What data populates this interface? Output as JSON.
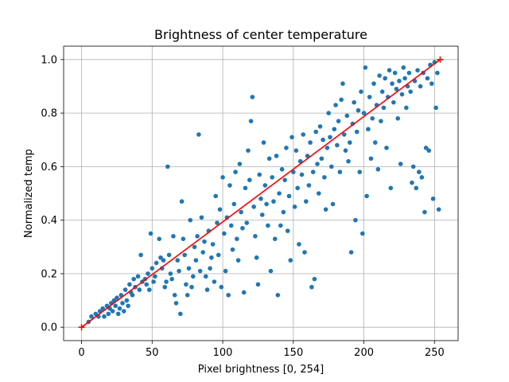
{
  "chart_data": {
    "type": "scatter",
    "title": "Brightness of center temperature",
    "xlabel": "Pixel brightness [0, 254]",
    "ylabel": "Normalized temp",
    "xlim": [
      -12.7,
      266.7
    ],
    "ylim": [
      -0.05,
      1.05
    ],
    "xticks": [
      0,
      50,
      100,
      150,
      200,
      250
    ],
    "yticks": [
      0.0,
      0.2,
      0.4,
      0.6,
      0.8,
      1.0
    ],
    "xtick_labels": [
      "0",
      "50",
      "100",
      "150",
      "200",
      "250"
    ],
    "ytick_labels": [
      "0.0",
      "0.2",
      "0.4",
      "0.6",
      "0.8",
      "1.0"
    ],
    "grid": true,
    "series": [
      {
        "kind": "scatter",
        "color": "#1f77b4",
        "points": [
          [
            5,
            0.02
          ],
          [
            7,
            0.04
          ],
          [
            10,
            0.05
          ],
          [
            12,
            0.04
          ],
          [
            13,
            0.06
          ],
          [
            15,
            0.07
          ],
          [
            16,
            0.04
          ],
          [
            18,
            0.08
          ],
          [
            19,
            0.05
          ],
          [
            20,
            0.07
          ],
          [
            21,
            0.09
          ],
          [
            22,
            0.06
          ],
          [
            23,
            0.1
          ],
          [
            24,
            0.08
          ],
          [
            25,
            0.11
          ],
          [
            26,
            0.05
          ],
          [
            27,
            0.07
          ],
          [
            28,
            0.12
          ],
          [
            29,
            0.09
          ],
          [
            30,
            0.06
          ],
          [
            31,
            0.14
          ],
          [
            32,
            0.1
          ],
          [
            33,
            0.08
          ],
          [
            34,
            0.16
          ],
          [
            35,
            0.13
          ],
          [
            36,
            0.12
          ],
          [
            37,
            0.18
          ],
          [
            38,
            0.15
          ],
          [
            40,
            0.19
          ],
          [
            41,
            0.14
          ],
          [
            42,
            0.27
          ],
          [
            43,
            0.17
          ],
          [
            45,
            0.18
          ],
          [
            46,
            0.16
          ],
          [
            47,
            0.2
          ],
          [
            48,
            0.14
          ],
          [
            49,
            0.35
          ],
          [
            50,
            0.22
          ],
          [
            51,
            0.17
          ],
          [
            52,
            0.19
          ],
          [
            53,
            0.24
          ],
          [
            55,
            0.33
          ],
          [
            56,
            0.26
          ],
          [
            57,
            0.22
          ],
          [
            58,
            0.25
          ],
          [
            59,
            0.15
          ],
          [
            60,
            0.17
          ],
          [
            61,
            0.6
          ],
          [
            62,
            0.27
          ],
          [
            63,
            0.2
          ],
          [
            64,
            0.18
          ],
          [
            65,
            0.34
          ],
          [
            66,
            0.12
          ],
          [
            67,
            0.09
          ],
          [
            68,
            0.25
          ],
          [
            69,
            0.21
          ],
          [
            70,
            0.05
          ],
          [
            71,
            0.47
          ],
          [
            72,
            0.33
          ],
          [
            73,
            0.27
          ],
          [
            74,
            0.16
          ],
          [
            75,
            0.12
          ],
          [
            76,
            0.22
          ],
          [
            77,
            0.4
          ],
          [
            78,
            0.15
          ],
          [
            79,
            0.19
          ],
          [
            80,
            0.3
          ],
          [
            81,
            0.25
          ],
          [
            82,
            0.34
          ],
          [
            83,
            0.72
          ],
          [
            84,
            0.21
          ],
          [
            85,
            0.41
          ],
          [
            86,
            0.28
          ],
          [
            87,
            0.32
          ],
          [
            88,
            0.19
          ],
          [
            89,
            0.14
          ],
          [
            90,
            0.36
          ],
          [
            91,
            0.22
          ],
          [
            92,
            0.26
          ],
          [
            93,
            0.31
          ],
          [
            94,
            0.17
          ],
          [
            95,
            0.49
          ],
          [
            96,
            0.39
          ],
          [
            97,
            0.27
          ],
          [
            98,
            0.44
          ],
          [
            99,
            0.15
          ],
          [
            100,
            0.56
          ],
          [
            101,
            0.35
          ],
          [
            102,
            0.21
          ],
          [
            103,
            0.41
          ],
          [
            104,
            0.12
          ],
          [
            105,
            0.53
          ],
          [
            106,
            0.38
          ],
          [
            107,
            0.29
          ],
          [
            108,
            0.46
          ],
          [
            109,
            0.58
          ],
          [
            110,
            0.33
          ],
          [
            111,
            0.25
          ],
          [
            112,
            0.61
          ],
          [
            113,
            0.43
          ],
          [
            114,
            0.37
          ],
          [
            115,
            0.13
          ],
          [
            116,
            0.52
          ],
          [
            117,
            0.39
          ],
          [
            118,
            0.66
          ],
          [
            119,
            0.55
          ],
          [
            120,
            0.77
          ],
          [
            121,
            0.86
          ],
          [
            122,
            0.45
          ],
          [
            123,
            0.34
          ],
          [
            124,
            0.26
          ],
          [
            125,
            0.16
          ],
          [
            126,
            0.57
          ],
          [
            127,
            0.48
          ],
          [
            128,
            0.42
          ],
          [
            129,
            0.69
          ],
          [
            130,
            0.53
          ],
          [
            131,
            0.46
          ],
          [
            132,
            0.38
          ],
          [
            133,
            0.63
          ],
          [
            134,
            0.21
          ],
          [
            135,
            0.56
          ],
          [
            136,
            0.47
          ],
          [
            137,
            0.33
          ],
          [
            138,
            0.64
          ],
          [
            139,
            0.12
          ],
          [
            140,
            0.5
          ],
          [
            141,
            0.38
          ],
          [
            142,
            0.59
          ],
          [
            143,
            0.43
          ],
          [
            144,
            0.55
          ],
          [
            145,
            0.67
          ],
          [
            146,
            0.36
          ],
          [
            147,
            0.49
          ],
          [
            148,
            0.25
          ],
          [
            149,
            0.71
          ],
          [
            150,
            0.58
          ],
          [
            151,
            0.45
          ],
          [
            152,
            0.66
          ],
          [
            153,
            0.52
          ],
          [
            154,
            0.31
          ],
          [
            155,
            0.62
          ],
          [
            156,
            0.57
          ],
          [
            157,
            0.72
          ],
          [
            158,
            0.28
          ],
          [
            159,
            0.47
          ],
          [
            160,
            0.64
          ],
          [
            161,
            0.53
          ],
          [
            162,
            0.69
          ],
          [
            163,
            0.15
          ],
          [
            164,
            0.58
          ],
          [
            165,
            0.18
          ],
          [
            166,
            0.73
          ],
          [
            167,
            0.61
          ],
          [
            168,
            0.5
          ],
          [
            169,
            0.75
          ],
          [
            170,
            0.63
          ],
          [
            171,
            0.7
          ],
          [
            172,
            0.56
          ],
          [
            173,
            0.44
          ],
          [
            174,
            0.67
          ],
          [
            175,
            0.8
          ],
          [
            176,
            0.71
          ],
          [
            177,
            0.6
          ],
          [
            178,
            0.46
          ],
          [
            179,
            0.74
          ],
          [
            180,
            0.83
          ],
          [
            181,
            0.68
          ],
          [
            182,
            0.77
          ],
          [
            183,
            0.58
          ],
          [
            184,
            0.85
          ],
          [
            185,
            0.91
          ],
          [
            186,
            0.72
          ],
          [
            187,
            0.66
          ],
          [
            188,
            0.79
          ],
          [
            189,
            0.62
          ],
          [
            190,
            0.69
          ],
          [
            191,
            0.28
          ],
          [
            192,
            0.76
          ],
          [
            193,
            0.84
          ],
          [
            194,
            0.4
          ],
          [
            195,
            0.73
          ],
          [
            196,
            0.81
          ],
          [
            197,
            0.58
          ],
          [
            198,
            0.88
          ],
          [
            199,
            0.35
          ],
          [
            200,
            0.8
          ],
          [
            201,
            0.97
          ],
          [
            202,
            0.49
          ],
          [
            203,
            0.74
          ],
          [
            204,
            0.86
          ],
          [
            205,
            0.63
          ],
          [
            206,
            0.78
          ],
          [
            207,
            0.91
          ],
          [
            208,
            0.69
          ],
          [
            209,
            0.83
          ],
          [
            210,
            0.59
          ],
          [
            211,
            0.94
          ],
          [
            212,
            0.77
          ],
          [
            213,
            0.88
          ],
          [
            214,
            0.82
          ],
          [
            215,
            0.93
          ],
          [
            216,
            0.67
          ],
          [
            217,
            0.86
          ],
          [
            218,
            0.96
          ],
          [
            219,
            0.52
          ],
          [
            220,
            0.91
          ],
          [
            221,
            0.84
          ],
          [
            222,
            0.95
          ],
          [
            223,
            0.89
          ],
          [
            224,
            0.78
          ],
          [
            225,
            0.92
          ],
          [
            226,
            0.61
          ],
          [
            227,
            0.87
          ],
          [
            228,
            0.97
          ],
          [
            229,
            0.93
          ],
          [
            230,
            0.82
          ],
          [
            231,
            0.9
          ],
          [
            232,
            0.95
          ],
          [
            233,
            0.88
          ],
          [
            234,
            0.54
          ],
          [
            235,
            0.6
          ],
          [
            236,
            0.92
          ],
          [
            237,
            0.52
          ],
          [
            238,
            0.96
          ],
          [
            239,
            0.58
          ],
          [
            240,
            0.9
          ],
          [
            241,
            0.56
          ],
          [
            242,
            0.95
          ],
          [
            243,
            0.43
          ],
          [
            244,
            0.67
          ],
          [
            245,
            0.93
          ],
          [
            246,
            0.66
          ],
          [
            247,
            0.98
          ],
          [
            248,
            0.91
          ],
          [
            249,
            0.48
          ],
          [
            250,
            0.99
          ],
          [
            251,
            0.82
          ],
          [
            252,
            0.95
          ],
          [
            253,
            0.44
          ]
        ]
      },
      {
        "kind": "line",
        "color": "#ff0000",
        "marker": "+",
        "points": [
          [
            0,
            0.0
          ],
          [
            254,
            1.0
          ]
        ]
      }
    ]
  }
}
